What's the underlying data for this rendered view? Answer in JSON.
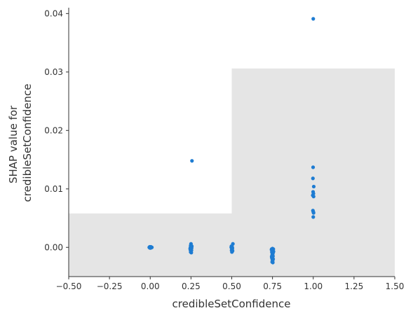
{
  "chart_data": {
    "type": "scatter",
    "title": "",
    "xlabel": "credibleSetConfidence",
    "ylabel_lines": [
      "SHAP value for",
      "credibleSetConfidence"
    ],
    "xlim": [
      -0.5,
      1.5
    ],
    "ylim": [
      -0.005,
      0.041
    ],
    "x_ticks": [
      -0.5,
      -0.25,
      0.0,
      0.25,
      0.5,
      0.75,
      1.0,
      1.25,
      1.5
    ],
    "x_tick_labels": [
      "−0.50",
      "−0.25",
      "0.00",
      "0.25",
      "0.50",
      "0.75",
      "1.00",
      "1.25",
      "1.50"
    ],
    "y_ticks": [
      0.0,
      0.01,
      0.02,
      0.03,
      0.04
    ],
    "y_tick_labels": [
      "0.00",
      "0.01",
      "0.02",
      "0.03",
      "0.04"
    ],
    "grid": false,
    "legend": "none",
    "point_color": "#1E7CD2",
    "background_histogram": {
      "color": "#E5E5E5",
      "bins": [
        {
          "x0": -0.5,
          "x1": 0.5,
          "top": 0.0058
        },
        {
          "x0": 0.5,
          "x1": 1.5,
          "top": 0.0306
        }
      ]
    },
    "points": [
      {
        "x": -0.006,
        "y": 0.0
      },
      {
        "x": -0.003,
        "y": 0.0001
      },
      {
        "x": 0.0,
        "y": 0.0
      },
      {
        "x": 0.003,
        "y": -0.0001
      },
      {
        "x": 0.006,
        "y": 0.0
      },
      {
        "x": 0.01,
        "y": 0.0
      },
      {
        "x": -0.002,
        "y": -0.0001
      },
      {
        "x": 0.004,
        "y": 0.0001
      },
      {
        "x": 0.256,
        "y": 0.0148
      },
      {
        "x": 0.25,
        "y": 0.0006
      },
      {
        "x": 0.248,
        "y": 0.0003
      },
      {
        "x": 0.252,
        "y": 0.0001
      },
      {
        "x": 0.247,
        "y": 0.0
      },
      {
        "x": 0.254,
        "y": -0.0001
      },
      {
        "x": 0.249,
        "y": -0.0002
      },
      {
        "x": 0.251,
        "y": -0.0003
      },
      {
        "x": 0.246,
        "y": -0.0004
      },
      {
        "x": 0.253,
        "y": -0.0005
      },
      {
        "x": 0.25,
        "y": -0.0006
      },
      {
        "x": 0.248,
        "y": -0.0008
      },
      {
        "x": 0.252,
        "y": -0.0009
      },
      {
        "x": 0.245,
        "y": -0.0002
      },
      {
        "x": 0.255,
        "y": 0.0002
      },
      {
        "x": 0.507,
        "y": 0.0006
      },
      {
        "x": 0.498,
        "y": 0.0002
      },
      {
        "x": 0.502,
        "y": 0.0001
      },
      {
        "x": 0.497,
        "y": 0.0
      },
      {
        "x": 0.504,
        "y": -0.0001
      },
      {
        "x": 0.5,
        "y": -0.0002
      },
      {
        "x": 0.503,
        "y": -0.0003
      },
      {
        "x": 0.499,
        "y": -0.0005
      },
      {
        "x": 0.505,
        "y": -0.0006
      },
      {
        "x": 0.501,
        "y": -0.0008
      },
      {
        "x": 0.75,
        "y": -0.0002
      },
      {
        "x": 0.745,
        "y": -0.0003
      },
      {
        "x": 0.755,
        "y": -0.0003
      },
      {
        "x": 0.748,
        "y": -0.0005
      },
      {
        "x": 0.752,
        "y": -0.0006
      },
      {
        "x": 0.746,
        "y": -0.0008
      },
      {
        "x": 0.754,
        "y": -0.0009
      },
      {
        "x": 0.749,
        "y": -0.0011
      },
      {
        "x": 0.751,
        "y": -0.0012
      },
      {
        "x": 0.747,
        "y": -0.0014
      },
      {
        "x": 0.753,
        "y": -0.0015
      },
      {
        "x": 0.75,
        "y": -0.0017
      },
      {
        "x": 0.746,
        "y": -0.0018
      },
      {
        "x": 0.754,
        "y": -0.002
      },
      {
        "x": 0.749,
        "y": -0.0021
      },
      {
        "x": 0.751,
        "y": -0.0023
      },
      {
        "x": 0.748,
        "y": -0.0025
      },
      {
        "x": 0.752,
        "y": -0.0026
      },
      {
        "x": 0.744,
        "y": -0.0004
      },
      {
        "x": 0.756,
        "y": -0.0007
      },
      {
        "x": 0.745,
        "y": -0.0016
      },
      {
        "x": 1.0,
        "y": 0.0391
      },
      {
        "x": 0.999,
        "y": 0.0137
      },
      {
        "x": 0.998,
        "y": 0.0118
      },
      {
        "x": 1.003,
        "y": 0.0104
      },
      {
        "x": 0.999,
        "y": 0.0095
      },
      {
        "x": 1.001,
        "y": 0.0092
      },
      {
        "x": 0.997,
        "y": 0.0089
      },
      {
        "x": 1.002,
        "y": 0.0087
      },
      {
        "x": 0.998,
        "y": 0.0063
      },
      {
        "x": 1.0,
        "y": 0.0061
      },
      {
        "x": 1.002,
        "y": 0.0059
      },
      {
        "x": 1.0,
        "y": 0.0052
      }
    ]
  }
}
